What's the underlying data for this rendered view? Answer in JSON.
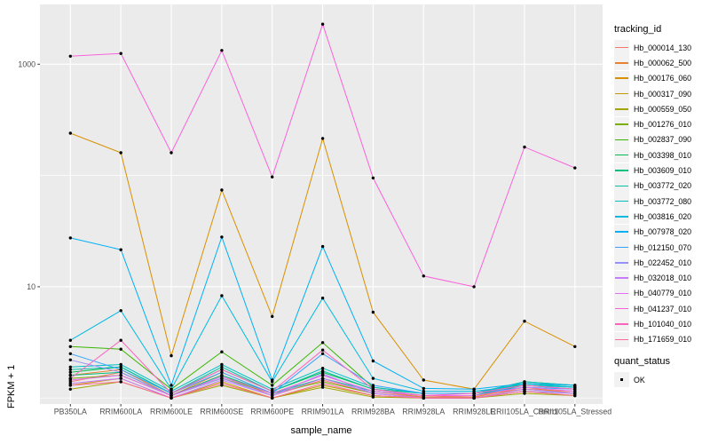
{
  "chart_data": {
    "type": "line",
    "title": "",
    "xlabel": "sample_name",
    "ylabel": "FPKM + 1",
    "y_scale": "log10",
    "ylim": [
      1,
      3500
    ],
    "grid": true,
    "panel_bg": "#EBEBEB",
    "grid_color": "#FFFFFF",
    "point_color": "#000000",
    "legend_position": "right",
    "legend_title": "tracking_id",
    "y_ticks": [
      {
        "value": 1000,
        "label": "1000"
      },
      {
        "value": 10,
        "label": "10"
      }
    ],
    "y_gridlines_major": [
      10,
      1000
    ],
    "y_gridlines_minor": [
      1,
      100
    ],
    "categories": [
      "PB350LA",
      "RRIM600LA",
      "RRIM600LE",
      "RRIM600SE",
      "RRIM600PE",
      "RRIM901LA",
      "RRIM928BA",
      "RRIM928LA",
      "RRIM928LE",
      "RRII105LA_Control",
      "RRII105LA_Stressed"
    ],
    "series": [
      {
        "name": "Hb_000014_130",
        "color": "#F8766D",
        "values": [
          1.4,
          1.7,
          1.05,
          1.6,
          1.05,
          1.45,
          1.1,
          1.02,
          1.05,
          1.2,
          1.15
        ]
      },
      {
        "name": "Hb_000062_500",
        "color": "#EA8331",
        "values": [
          1.6,
          1.8,
          1.05,
          1.7,
          1.1,
          1.6,
          1.15,
          1.02,
          1.02,
          1.25,
          1.1
        ]
      },
      {
        "name": "Hb_000176_060",
        "color": "#D89000",
        "values": [
          240,
          160,
          2.4,
          74,
          5.4,
          215,
          5.9,
          1.45,
          1.2,
          4.9,
          2.9
        ]
      },
      {
        "name": "Hb_000317_090",
        "color": "#C09B00",
        "values": [
          1.3,
          1.5,
          1.0,
          1.4,
          1.0,
          1.3,
          1.05,
          1.0,
          1.0,
          1.15,
          1.05
        ]
      },
      {
        "name": "Hb_000559_050",
        "color": "#A3A500",
        "values": [
          1.2,
          1.4,
          1.0,
          1.3,
          1.0,
          1.25,
          1.02,
          1.0,
          1.0,
          1.1,
          1.05
        ]
      },
      {
        "name": "Hb_001276_010",
        "color": "#7CAE00",
        "values": [
          1.5,
          1.6,
          1.05,
          1.5,
          1.1,
          1.4,
          1.1,
          1.0,
          1.0,
          1.2,
          1.1
        ]
      },
      {
        "name": "Hb_002837_090",
        "color": "#39B600",
        "values": [
          2.9,
          2.75,
          1.2,
          2.6,
          1.3,
          3.15,
          1.25,
          1.1,
          1.1,
          1.4,
          1.3
        ]
      },
      {
        "name": "Hb_003398_010",
        "color": "#00BB4E",
        "values": [
          1.7,
          1.9,
          1.1,
          1.8,
          1.15,
          1.7,
          1.2,
          1.05,
          1.05,
          1.35,
          1.25
        ]
      },
      {
        "name": "Hb_003609_010",
        "color": "#00BF7D",
        "values": [
          1.6,
          1.7,
          1.05,
          1.6,
          1.1,
          1.5,
          1.15,
          1.05,
          1.05,
          1.3,
          1.2
        ]
      },
      {
        "name": "Hb_003772_020",
        "color": "#00C1A3",
        "values": [
          1.8,
          1.9,
          1.1,
          1.9,
          1.15,
          1.75,
          1.2,
          1.1,
          1.1,
          1.35,
          1.25
        ]
      },
      {
        "name": "Hb_003772_080",
        "color": "#00BFC4",
        "values": [
          1.9,
          2.0,
          1.15,
          2.0,
          1.2,
          1.85,
          1.25,
          1.1,
          1.1,
          1.4,
          1.3
        ]
      },
      {
        "name": "Hb_003816_020",
        "color": "#00BAE0",
        "values": [
          3.3,
          6.1,
          1.2,
          8.3,
          1.4,
          7.9,
          1.5,
          1.15,
          1.15,
          1.3,
          1.25
        ]
      },
      {
        "name": "Hb_007978_020",
        "color": "#00B0F6",
        "values": [
          27.5,
          21.5,
          1.3,
          28.0,
          1.45,
          23.0,
          2.15,
          1.22,
          1.2,
          1.35,
          1.3
        ]
      },
      {
        "name": "Hb_012150_070",
        "color": "#35A2FF",
        "values": [
          2.5,
          1.8,
          1.1,
          1.7,
          1.1,
          2.5,
          1.3,
          1.1,
          1.1,
          1.25,
          1.2
        ]
      },
      {
        "name": "Hb_022452_010",
        "color": "#9590FF",
        "values": [
          2.2,
          1.7,
          1.05,
          1.5,
          1.05,
          1.65,
          1.1,
          1.0,
          1.0,
          1.15,
          1.1
        ]
      },
      {
        "name": "Hb_032018_010",
        "color": "#C77CFF",
        "values": [
          1.35,
          1.5,
          1.0,
          1.45,
          1.05,
          1.5,
          1.1,
          1.0,
          1.0,
          1.2,
          1.1
        ]
      },
      {
        "name": "Hb_040779_010",
        "color": "#E76BF3",
        "values": [
          1.45,
          1.6,
          1.05,
          1.55,
          1.1,
          1.6,
          1.15,
          1.05,
          1.05,
          1.25,
          1.15
        ]
      },
      {
        "name": "Hb_041237_010",
        "color": "#FA62DB",
        "values": [
          1180,
          1250,
          160,
          1330,
          97,
          2290,
          95,
          12.5,
          10,
          180,
          117
        ]
      },
      {
        "name": "Hb_101040_010",
        "color": "#FF62BC",
        "values": [
          1.5,
          3.3,
          1.1,
          1.8,
          1.15,
          2.7,
          1.2,
          1.05,
          1.1,
          1.3,
          1.2
        ]
      },
      {
        "name": "Hb_171659_010",
        "color": "#FF6A98",
        "values": [
          1.3,
          1.4,
          1.0,
          1.35,
          1.0,
          1.35,
          1.05,
          1.0,
          1.0,
          1.15,
          1.05
        ]
      }
    ],
    "quant_legend": {
      "title": "quant_status",
      "items": [
        {
          "label": "OK",
          "marker": "black-point"
        }
      ]
    }
  }
}
